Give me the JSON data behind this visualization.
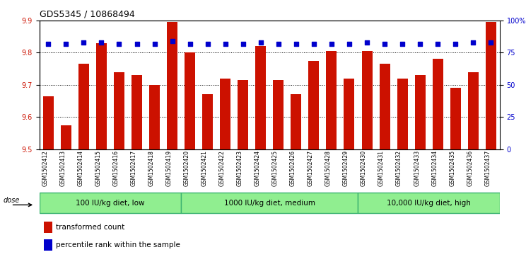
{
  "title": "GDS5345 / 10868494",
  "samples": [
    "GSM1502412",
    "GSM1502413",
    "GSM1502414",
    "GSM1502415",
    "GSM1502416",
    "GSM1502417",
    "GSM1502418",
    "GSM1502419",
    "GSM1502420",
    "GSM1502421",
    "GSM1502422",
    "GSM1502423",
    "GSM1502424",
    "GSM1502425",
    "GSM1502426",
    "GSM1502427",
    "GSM1502428",
    "GSM1502429",
    "GSM1502430",
    "GSM1502431",
    "GSM1502432",
    "GSM1502433",
    "GSM1502434",
    "GSM1502435",
    "GSM1502436",
    "GSM1502437"
  ],
  "transformed_count": [
    9.665,
    9.575,
    9.765,
    9.83,
    9.74,
    9.73,
    9.7,
    9.895,
    9.8,
    9.67,
    9.72,
    9.715,
    9.82,
    9.715,
    9.67,
    9.775,
    9.805,
    9.72,
    9.805,
    9.765,
    9.72,
    9.73,
    9.78,
    9.69,
    9.74,
    9.895
  ],
  "percentile_rank": [
    82,
    82,
    83,
    83,
    82,
    82,
    82,
    84,
    82,
    82,
    82,
    82,
    83,
    82,
    82,
    82,
    82,
    82,
    83,
    82,
    82,
    82,
    82,
    82,
    83,
    83
  ],
  "groups": [
    {
      "label": "100 IU/kg diet, low",
      "start": 0,
      "end": 8
    },
    {
      "label": "1000 IU/kg diet, medium",
      "start": 8,
      "end": 18
    },
    {
      "label": "10,000 IU/kg diet, high",
      "start": 18,
      "end": 26
    }
  ],
  "ylim_left": [
    9.5,
    9.9
  ],
  "ylim_right": [
    0,
    100
  ],
  "bar_color": "#cc1100",
  "dot_color": "#0000cc",
  "plot_bg_color": "#ffffff",
  "xtick_bg_color": "#d0d0d0",
  "group_color": "#90ee90",
  "group_border_color": "#3cb371",
  "grid_color": "#000000",
  "legend_red_label": "transformed count",
  "legend_blue_label": "percentile rank within the sample",
  "dose_label": "dose",
  "yticks_left": [
    9.5,
    9.6,
    9.7,
    9.8,
    9.9
  ],
  "yticks_right": [
    0,
    25,
    50,
    75,
    100
  ],
  "ytick_right_labels": [
    "0",
    "25",
    "50",
    "75",
    "100%"
  ],
  "grid_lines": [
    9.6,
    9.7,
    9.8
  ]
}
